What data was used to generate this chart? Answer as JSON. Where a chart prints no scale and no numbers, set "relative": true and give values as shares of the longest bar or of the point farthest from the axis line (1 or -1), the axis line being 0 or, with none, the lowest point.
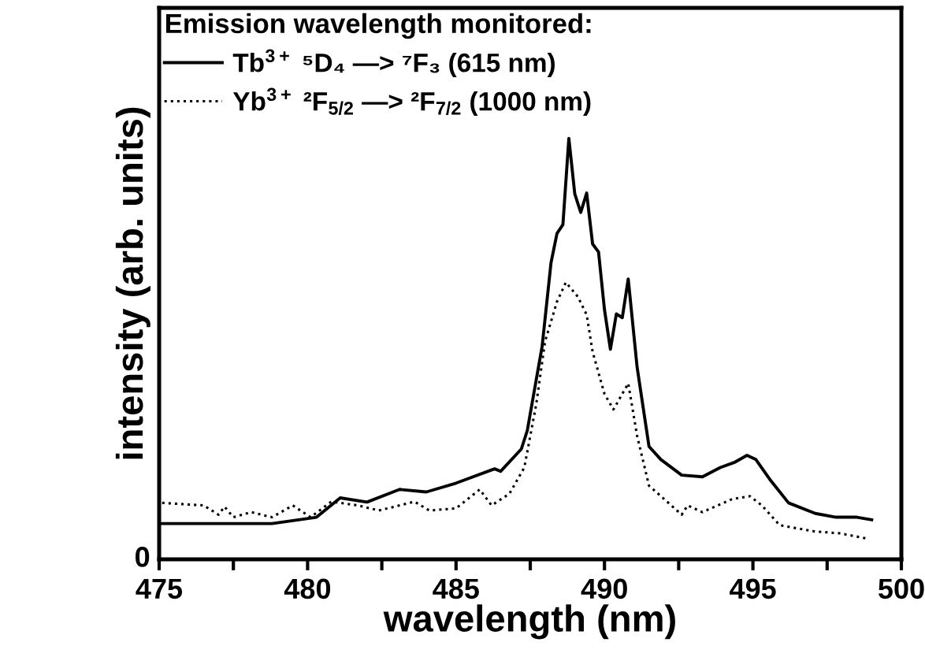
{
  "chart_data": {
    "type": "line",
    "relative": true,
    "xlabel": "wavelength (nm)",
    "ylabel": "intensity (arb. units)",
    "legend_title": "Emission wavelength monitored:",
    "legend": "top left",
    "grid": false,
    "xlim": [
      475,
      500
    ],
    "xticks": [
      475,
      {
        "value": 477.5,
        "label": null
      },
      480,
      {
        "value": 482.5,
        "label": null
      },
      485,
      {
        "value": 487.5,
        "label": null
      },
      490,
      {
        "value": 492.5,
        "label": null
      },
      495,
      {
        "value": 497.5,
        "label": null
      },
      500
    ],
    "annotations": [
      "0"
    ],
    "series": [
      {
        "name": "Tb$^{3+}$ ⁵D₄ —> ⁷F₃ (615 nm)",
        "color": "#000000",
        "line_style": "solid",
        "x": [
          475.1,
          478.8,
          480.3,
          481.1,
          482.0,
          483.1,
          484.0,
          485.0,
          486.3,
          486.5,
          487.2,
          487.4,
          487.9,
          488.2,
          488.4,
          488.6,
          488.8,
          489.0,
          489.2,
          489.4,
          489.6,
          489.8,
          490.0,
          490.2,
          490.4,
          490.6,
          490.8,
          491.1,
          491.5,
          491.9,
          492.6,
          493.3,
          493.9,
          494.4,
          494.8,
          495.1,
          495.6,
          496.2,
          497.1,
          497.8,
          498.5,
          499.0
        ],
        "values": [
          0.085,
          0.085,
          0.1,
          0.146,
          0.136,
          0.166,
          0.16,
          0.181,
          0.215,
          0.209,
          0.262,
          0.306,
          0.506,
          0.705,
          0.774,
          0.795,
          1.0,
          0.868,
          0.824,
          0.87,
          0.749,
          0.73,
          0.593,
          0.499,
          0.583,
          0.574,
          0.666,
          0.456,
          0.268,
          0.237,
          0.2,
          0.196,
          0.218,
          0.231,
          0.247,
          0.237,
          0.187,
          0.134,
          0.109,
          0.1,
          0.1,
          0.094
        ]
      },
      {
        "name": "Yb$^{3+}$ ²F$_{5/2}$ —> ²F$_{7/2}$ (1000 nm)",
        "color": "#000000",
        "line_style": "dotted",
        "x": [
          475.1,
          476.5,
          477.0,
          477.2,
          477.5,
          478.1,
          478.8,
          479.5,
          480.1,
          480.8,
          481.7,
          482.4,
          483.1,
          483.6,
          484.1,
          485.0,
          485.8,
          486.2,
          486.8,
          487.3,
          487.7,
          488.0,
          488.4,
          488.7,
          489.1,
          489.4,
          489.6,
          490.0,
          490.3,
          490.4,
          490.8,
          491.1,
          491.5,
          491.9,
          492.6,
          492.8,
          493.3,
          494.3,
          494.9,
          495.3,
          495.9,
          497.1,
          497.9,
          498.8
        ],
        "values": [
          0.134,
          0.128,
          0.106,
          0.125,
          0.1,
          0.112,
          0.1,
          0.128,
          0.1,
          0.137,
          0.128,
          0.116,
          0.128,
          0.137,
          0.116,
          0.121,
          0.166,
          0.128,
          0.156,
          0.218,
          0.368,
          0.518,
          0.612,
          0.658,
          0.624,
          0.581,
          0.493,
          0.393,
          0.356,
          0.368,
          0.418,
          0.293,
          0.175,
          0.15,
          0.106,
          0.128,
          0.112,
          0.143,
          0.15,
          0.128,
          0.081,
          0.066,
          0.062,
          0.05
        ]
      }
    ]
  }
}
